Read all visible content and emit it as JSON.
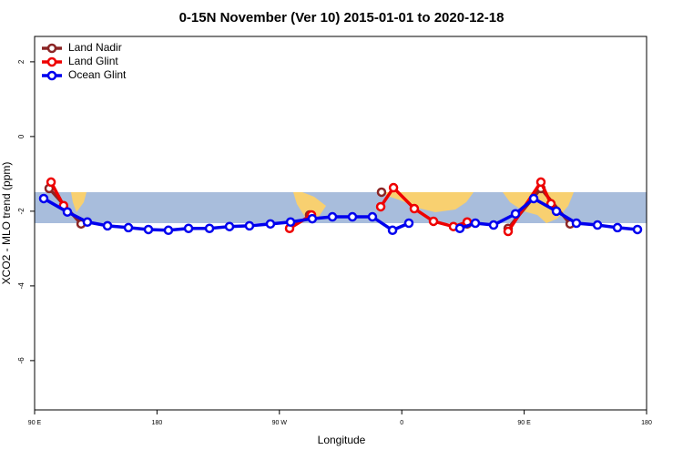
{
  "chart_data": {
    "type": "line",
    "title": "0-15N November (Ver 10)   2015-01-01 to 2020-12-18",
    "xlabel": "Longitude",
    "ylabel": "XCO2 - MLO trend (ppm)",
    "xlim": [
      90,
      540
    ],
    "ylim": [
      -7.32,
      2.68
    ],
    "xticks": [
      {
        "value": 90,
        "label": "90 E"
      },
      {
        "value": 180,
        "label": "180"
      },
      {
        "value": 270,
        "label": "90 W"
      },
      {
        "value": 360,
        "label": "0"
      },
      {
        "value": 450,
        "label": "90 E"
      },
      {
        "value": 540,
        "label": "180"
      }
    ],
    "yticks": [
      -6,
      -4,
      -2,
      0,
      2
    ],
    "legend": "top-left",
    "series": [
      {
        "name": "Land Nadir",
        "color": "#8b2525",
        "x": [
          100.7,
          124.2,
          null,
          292.2,
          null,
          345.1,
          null,
          408.1,
          null,
          438.2,
          462.3,
          483.8
        ],
        "values": [
          -1.39,
          -2.34,
          null,
          -2.1,
          null,
          -1.49,
          null,
          -2.34,
          null,
          -2.46,
          -1.39,
          -2.34
        ]
      },
      {
        "name": "Land Glint",
        "color": "#ee0000",
        "x": [
          102.1,
          111.3,
          null,
          277.5,
          293.6,
          null,
          344.5,
          353.9,
          369.2,
          383.3,
          398.0,
          408.1,
          null,
          438.2,
          462.3,
          469.7
        ],
        "values": [
          -1.22,
          -1.85,
          null,
          -2.46,
          -2.1,
          null,
          -1.88,
          -1.37,
          -1.93,
          -2.27,
          -2.41,
          -2.29,
          null,
          -2.54,
          -1.22,
          -1.8
        ]
      },
      {
        "name": "Ocean Glint",
        "color": "#0000ee",
        "x": [
          96.7,
          114.1,
          128.8,
          143.6,
          159.0,
          173.7,
          188.4,
          203.2,
          218.6,
          233.3,
          248.0,
          263.4,
          278.2,
          294.2,
          309.0,
          323.7,
          338.4,
          353.2,
          365.2,
          null,
          402.7,
          414.1,
          427.5,
          443.6,
          457.0,
          473.7,
          488.4,
          503.9,
          518.6,
          533.3
        ],
        "values": [
          -1.66,
          -2.02,
          -2.29,
          -2.39,
          -2.44,
          -2.49,
          -2.51,
          -2.46,
          -2.46,
          -2.41,
          -2.39,
          -2.34,
          -2.29,
          -2.2,
          -2.15,
          -2.15,
          -2.15,
          -2.51,
          -2.32,
          null,
          -2.46,
          -2.32,
          -2.37,
          -2.07,
          -1.66,
          -2.0,
          -2.32,
          -2.37,
          -2.44,
          -2.49
        ]
      }
    ]
  }
}
